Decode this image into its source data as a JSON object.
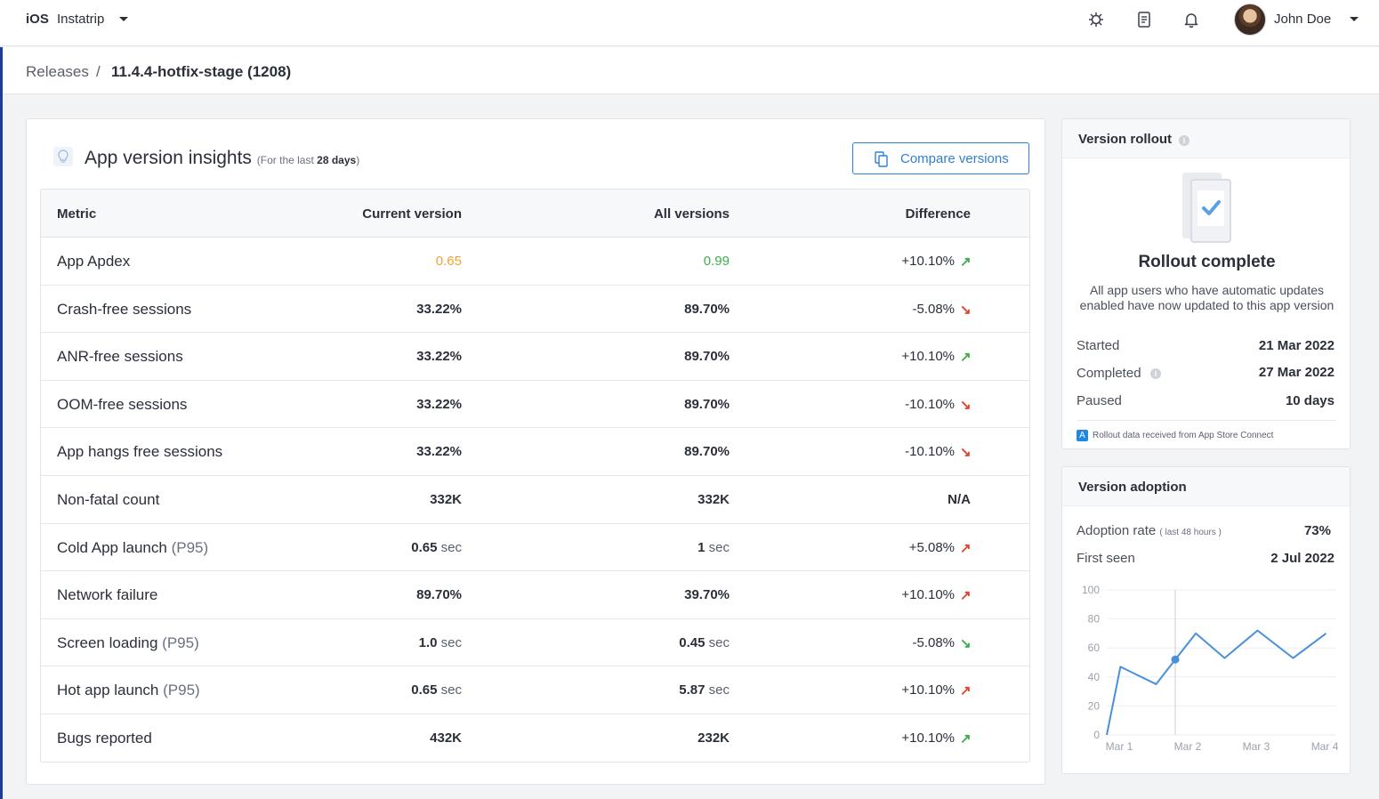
{
  "topbar": {
    "platform": "iOS",
    "app_name": "Instatrip",
    "user_name": "John Doe"
  },
  "breadcrumb": {
    "root": "Releases",
    "separator": "/",
    "current": "11.4.4-hotfix-stage (1208)"
  },
  "insights": {
    "title": "App version insights",
    "subtitle_prefix": "(For the last",
    "subtitle_period": "28 days",
    "subtitle_suffix": ")",
    "compare_button": "Compare versions",
    "columns": [
      "Metric",
      "Current version",
      "All versions",
      "Difference"
    ],
    "rows": [
      {
        "metric": "App Apdex",
        "qualifier": "",
        "current": "0.65",
        "current_unit": "",
        "all": "0.99",
        "all_unit": "",
        "difference": "+10.10%",
        "trend": "up-good"
      },
      {
        "metric": "Crash-free sessions",
        "qualifier": "",
        "current": "33.22%",
        "current_unit": "",
        "all": "89.70%",
        "all_unit": "",
        "difference": "-5.08%",
        "trend": "down-bad"
      },
      {
        "metric": "ANR-free sessions",
        "qualifier": "",
        "current": "33.22%",
        "current_unit": "",
        "all": "89.70%",
        "all_unit": "",
        "difference": "+10.10%",
        "trend": "up-good"
      },
      {
        "metric": "OOM-free sessions",
        "qualifier": "",
        "current": "33.22%",
        "current_unit": "",
        "all": "89.70%",
        "all_unit": "",
        "difference": "-10.10%",
        "trend": "down-bad"
      },
      {
        "metric": "App hangs free sessions",
        "qualifier": "",
        "current": "33.22%",
        "current_unit": "",
        "all": "89.70%",
        "all_unit": "",
        "difference": "-10.10%",
        "trend": "down-bad"
      },
      {
        "metric": "Non-fatal count",
        "qualifier": "",
        "current": "332K",
        "current_unit": "",
        "all": "332K",
        "all_unit": "",
        "difference": "N/A",
        "trend": "none"
      },
      {
        "metric": "Cold App launch",
        "qualifier": "(P95)",
        "current": "0.65",
        "current_unit": "sec",
        "all": "1",
        "all_unit": "sec",
        "difference": "+5.08%",
        "trend": "up-bad"
      },
      {
        "metric": "Network failure",
        "qualifier": "",
        "current": "89.70%",
        "current_unit": "",
        "all": "39.70%",
        "all_unit": "",
        "difference": "+10.10%",
        "trend": "up-bad"
      },
      {
        "metric": "Screen loading",
        "qualifier": "(P95)",
        "current": "1.0",
        "current_unit": "sec",
        "all": "0.45",
        "all_unit": "sec",
        "difference": "-5.08%",
        "trend": "down-good"
      },
      {
        "metric": "Hot app launch",
        "qualifier": "(P95)",
        "current": "0.65",
        "current_unit": "sec",
        "all": "5.87",
        "all_unit": "sec",
        "difference": "+10.10%",
        "trend": "up-bad"
      },
      {
        "metric": "Bugs reported",
        "qualifier": "",
        "current": "432K",
        "current_unit": "",
        "all": "232K",
        "all_unit": "",
        "difference": "+10.10%",
        "trend": "up-good"
      }
    ]
  },
  "rollout": {
    "title": "Version rollout",
    "status": "Rollout complete",
    "description": "All app users who have automatic updates enabled have now updated to this app version",
    "started_label": "Started",
    "started_value": "21 Mar 2022",
    "completed_label": "Completed",
    "completed_value": "27 Mar 2022",
    "paused_label": "Paused",
    "paused_value": "10 days",
    "source_note": "Rollout data received from App Store Connect"
  },
  "adoption": {
    "title": "Version adoption",
    "rate_label": "Adoption rate",
    "rate_hint": "( last 48 hours )",
    "rate_value": "73%",
    "first_seen_label": "First seen",
    "first_seen_value": "2 Jul 2022"
  },
  "colors": {
    "accent": "#2f7fd6",
    "nav_accent": "#1f3c98",
    "warning": "#f0a22e",
    "good": "#3fae49",
    "bad": "#e0452b",
    "line": "#4a8fd9"
  },
  "chart_data": {
    "type": "line",
    "x": [
      1.0,
      1.2,
      1.72,
      2.0,
      2.3,
      2.72,
      3.2,
      3.72,
      4.2
    ],
    "series": [
      {
        "values": [
          0,
          47,
          35,
          52,
          70,
          53,
          72,
          53,
          70
        ]
      }
    ],
    "xticks": [
      1,
      2,
      3,
      4
    ],
    "xtick_labels": [
      "Mar 1",
      "Mar 2",
      "Mar 3",
      "Mar 4"
    ],
    "ylim": [
      0,
      100
    ],
    "yticks": [
      0,
      20,
      40,
      60,
      80,
      100
    ],
    "highlight": {
      "x": 2.0,
      "value": 52
    },
    "grid": true
  }
}
